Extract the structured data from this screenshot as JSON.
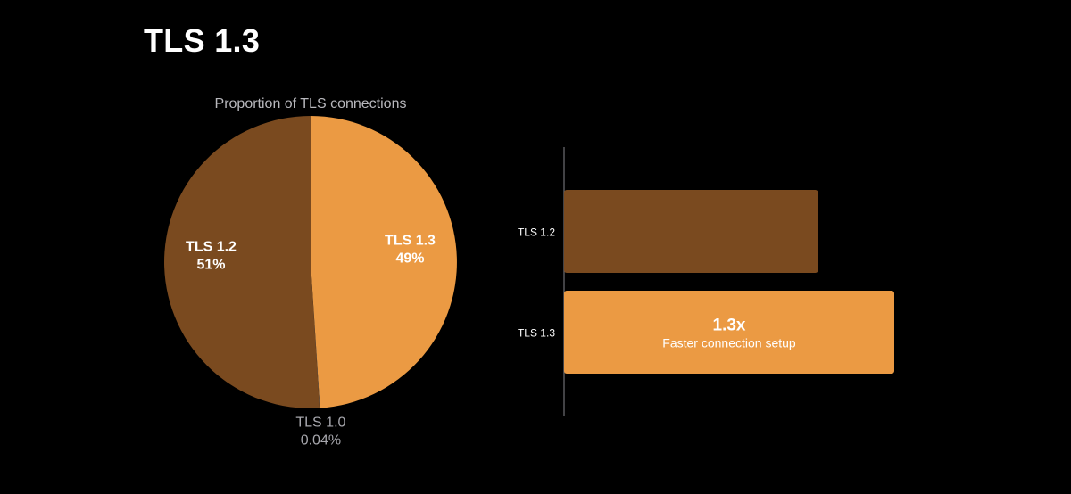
{
  "slide": {
    "title": "TLS 1.3"
  },
  "colors": {
    "background": "#000000",
    "tls12": "#7a4a1f",
    "tls13": "#eb9a43",
    "axis": "#6e6e73",
    "muted_text": "#a7a7ad"
  },
  "chart_data": [
    {
      "type": "pie",
      "title": "Proportion of TLS connections",
      "slices": [
        {
          "name": "TLS 1.3",
          "value": 49,
          "display": "49%",
          "color": "#eb9a43"
        },
        {
          "name": "TLS 1.0",
          "value": 0.04,
          "display": "0.04%",
          "color": "#6e6e73"
        },
        {
          "name": "TLS 1.2",
          "value": 51,
          "display": "51%",
          "color": "#7a4a1f"
        }
      ]
    },
    {
      "type": "bar",
      "orientation": "horizontal",
      "categories": [
        "TLS 1.2",
        "TLS 1.3"
      ],
      "values": [
        1.0,
        1.3
      ],
      "colors": [
        "#7a4a1f",
        "#eb9a43"
      ],
      "annotation": {
        "category": "TLS 1.3",
        "value_text": "1.3x",
        "text": "Faster connection setup"
      }
    }
  ]
}
